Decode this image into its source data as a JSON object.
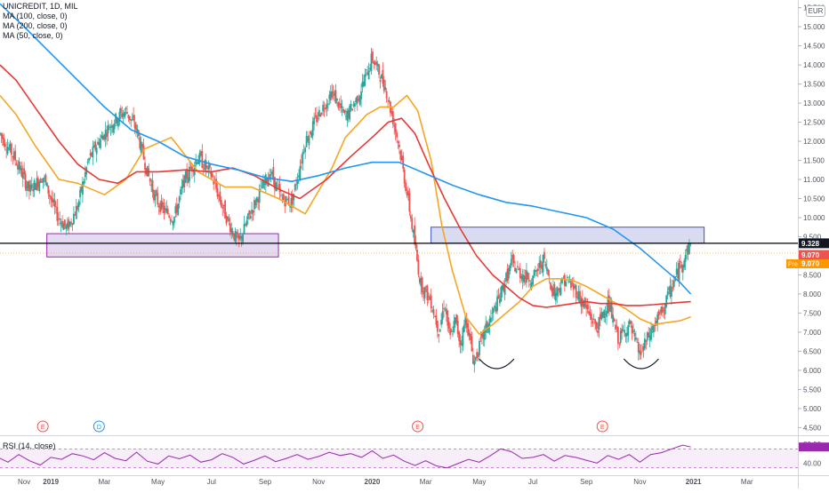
{
  "header": {
    "symbol": "UNICREDIT, 1D, MIL",
    "currency": "EUR"
  },
  "indicators": [
    {
      "label": "MA (100, close, 0)",
      "color": "#e53935"
    },
    {
      "label": "MA (200, close, 0)",
      "color": "#2196f3"
    },
    {
      "label": "MA (50, close, 0)",
      "color": "#f5a623"
    }
  ],
  "rsi_panel": {
    "label": "RSI (14, close)",
    "color": "#9c27b0",
    "ticks": [
      "80.00",
      "40.00"
    ]
  },
  "price_badges": {
    "last_close": "9.328",
    "close_tag": "9.070",
    "pre_label": "Pre",
    "pre_value": "9.070"
  },
  "event_markers": [
    "E",
    "D",
    "E",
    "E"
  ],
  "colors": {
    "candle_up": "#26a69a",
    "candle_down": "#ef5350",
    "ma50": "#f5a623",
    "ma100": "#e53935",
    "ma200": "#2196f3",
    "support_zone": "#9c27b0",
    "resistance_zone": "#3f51b5",
    "horizontal_line": "#000000",
    "badge_dark": "#131722",
    "badge_red": "#ef5350",
    "badge_orange": "#ff9800"
  },
  "chart_data": {
    "type": "line",
    "title": "UNICREDIT, 1D, MIL",
    "yaxis": {
      "ticks": [
        "15.500",
        "15.000",
        "14.500",
        "14.000",
        "13.500",
        "13.000",
        "12.500",
        "12.000",
        "11.500",
        "11.000",
        "10.500",
        "10.000",
        "9.500",
        "9.000",
        "8.500",
        "8.000",
        "7.500",
        "7.000",
        "6.500",
        "6.000",
        "5.500",
        "5.000",
        "4.500"
      ],
      "ylim": [
        4.3,
        15.7
      ]
    },
    "xaxis": {
      "ticks": [
        "Nov",
        "2019",
        "Mar",
        "May",
        "Jul",
        "Sep",
        "Nov",
        "2020",
        "Mar",
        "May",
        "Jul",
        "Sep",
        "Nov",
        "2021",
        "Mar"
      ],
      "range_months": [
        -1.9,
        27.9
      ]
    },
    "price": {
      "t": [
        -1.9,
        -1.3,
        -0.8,
        -0.3,
        0.2,
        0.6,
        1.0,
        1.4,
        1.8,
        2.3,
        2.8,
        3.2,
        3.6,
        3.9,
        4.2,
        4.6,
        5.0,
        5.5,
        6.0,
        6.5,
        7.0,
        7.5,
        7.9,
        8.2,
        8.6,
        9.0,
        9.5,
        10.0,
        10.5,
        11.0,
        11.5,
        12.0,
        12.5,
        13.0,
        13.4,
        13.8,
        14.2,
        14.5,
        14.7,
        14.9,
        15.1,
        15.3,
        15.5,
        15.8,
        16.2,
        16.7,
        17.2,
        17.6,
        18.0,
        18.4,
        18.8,
        19.2,
        19.6,
        20.0,
        20.4,
        20.8,
        21.2,
        21.6,
        22.0,
        22.4,
        22.8,
        23.2,
        23.6,
        23.9
      ],
      "close": [
        12.2,
        11.5,
        10.7,
        11.1,
        10.1,
        9.7,
        10.3,
        11.5,
        12.0,
        12.5,
        12.8,
        12.3,
        11.2,
        10.5,
        10.2,
        10.0,
        11.0,
        11.6,
        11.1,
        10.1,
        9.3,
        10.2,
        10.8,
        11.2,
        10.5,
        10.4,
        12.0,
        12.7,
        13.3,
        12.6,
        13.2,
        14.2,
        13.4,
        11.9,
        10.2,
        8.3,
        7.8,
        7.0,
        7.8,
        6.8,
        7.3,
        6.7,
        7.4,
        6.2,
        7.0,
        7.8,
        8.8,
        8.5,
        8.4,
        8.9,
        8.0,
        8.4,
        8.1,
        7.6,
        7.1,
        7.8,
        6.8,
        7.2,
        6.4,
        7.0,
        7.5,
        8.2,
        8.9,
        9.3
      ]
    },
    "series": [
      {
        "name": "MA (50, close, 0)",
        "t": [
          -1.9,
          -1.3,
          -0.6,
          0.3,
          1.0,
          2.0,
          2.8,
          3.5,
          4.5,
          5.5,
          6.5,
          7.5,
          8.5,
          9.5,
          10.5,
          11.0,
          11.8,
          12.3,
          12.8,
          13.3,
          13.7,
          14.2,
          14.6,
          15.0,
          15.5,
          16.0,
          16.5,
          17.0,
          17.5,
          18.0,
          18.5,
          19.0,
          19.5,
          20.0,
          20.5,
          21.0,
          21.5,
          22.0,
          22.5,
          23.0,
          23.5,
          23.9
        ],
        "values": [
          13.2,
          12.7,
          11.9,
          11.0,
          10.9,
          10.6,
          11.0,
          11.8,
          12.1,
          11.2,
          10.8,
          10.8,
          10.5,
          10.1,
          11.3,
          12.1,
          12.7,
          12.9,
          12.9,
          13.2,
          12.8,
          11.5,
          9.8,
          8.6,
          7.4,
          6.95,
          7.2,
          7.5,
          7.8,
          8.2,
          8.4,
          8.4,
          8.35,
          8.2,
          8.0,
          7.8,
          7.6,
          7.35,
          7.2,
          7.25,
          7.3,
          7.4
        ]
      },
      {
        "name": "MA (100, close, 0)",
        "t": [
          -1.9,
          -1.3,
          -0.6,
          0.3,
          1.0,
          1.8,
          2.5,
          3.2,
          4.0,
          5.0,
          6.0,
          6.8,
          7.6,
          8.5,
          9.3,
          10.3,
          11.2,
          12.0,
          12.6,
          13.1,
          13.6,
          14.1,
          14.7,
          15.3,
          15.9,
          16.5,
          17.0,
          17.5,
          18.0,
          18.5,
          19.0,
          19.5,
          20.0,
          20.5,
          21.0,
          21.5,
          22.0,
          22.5,
          23.0,
          23.5,
          23.9
        ],
        "values": [
          14.0,
          13.6,
          12.9,
          12.0,
          11.4,
          11.0,
          10.9,
          11.2,
          11.2,
          11.25,
          11.2,
          11.3,
          11.1,
          10.75,
          10.5,
          11.0,
          11.6,
          12.1,
          12.5,
          12.6,
          12.2,
          11.4,
          10.5,
          9.7,
          9.0,
          8.5,
          8.2,
          7.9,
          7.7,
          7.65,
          7.7,
          7.75,
          7.8,
          7.75,
          7.75,
          7.7,
          7.7,
          7.72,
          7.75,
          7.78,
          7.8
        ]
      },
      {
        "name": "MA (200, close, 0)",
        "t": [
          -1.9,
          -1.0,
          0.0,
          1.0,
          2.0,
          3.0,
          4.0,
          5.0,
          6.0,
          7.0,
          8.0,
          9.0,
          10.0,
          11.0,
          12.0,
          13.0,
          14.0,
          15.0,
          16.0,
          17.0,
          18.0,
          19.0,
          20.0,
          21.0,
          22.0,
          22.5,
          23.0,
          23.5,
          23.9
        ],
        "values": [
          15.6,
          15.0,
          14.3,
          13.6,
          12.9,
          12.3,
          12.0,
          11.6,
          11.4,
          11.25,
          11.05,
          10.95,
          11.1,
          11.3,
          11.45,
          11.45,
          11.15,
          10.85,
          10.6,
          10.4,
          10.3,
          10.15,
          10.0,
          9.7,
          9.2,
          8.9,
          8.6,
          8.3,
          8.0
        ]
      }
    ],
    "zones": [
      {
        "t0": -0.15,
        "t1": 8.5,
        "y0": 8.97,
        "y1": 9.58
      },
      {
        "t0": 14.2,
        "t1": 24.4,
        "y0": 9.33,
        "y1": 9.75
      }
    ],
    "hline": 9.328,
    "arcs": [
      {
        "t0": 16.0,
        "t1": 17.3,
        "ylevel": 6.3
      },
      {
        "t0": 21.4,
        "t1": 22.7,
        "ylevel": 6.3
      }
    ],
    "rsi": {
      "ylim": [
        20,
        95
      ],
      "levels": [
        70,
        30
      ],
      "t": [
        -1.9,
        -1.6,
        -1.2,
        -0.8,
        -0.4,
        0.0,
        0.4,
        0.8,
        1.2,
        1.6,
        2.0,
        2.4,
        2.8,
        3.2,
        3.6,
        4.0,
        4.4,
        4.8,
        5.2,
        5.6,
        6.0,
        6.4,
        6.8,
        7.2,
        7.6,
        8.0,
        8.4,
        8.8,
        9.2,
        9.6,
        10.0,
        10.4,
        10.8,
        11.2,
        11.6,
        12.0,
        12.4,
        12.8,
        13.2,
        13.6,
        14.0,
        14.4,
        14.8,
        15.2,
        15.6,
        16.0,
        16.4,
        16.8,
        17.2,
        17.6,
        18.0,
        18.4,
        18.8,
        19.2,
        19.6,
        20.0,
        20.4,
        20.8,
        21.2,
        21.6,
        22.0,
        22.4,
        22.8,
        23.2,
        23.6,
        23.9
      ],
      "values": [
        50,
        42,
        58,
        45,
        36,
        52,
        48,
        60,
        55,
        47,
        62,
        50,
        45,
        63,
        44,
        38,
        55,
        49,
        57,
        42,
        47,
        60,
        52,
        38,
        46,
        55,
        43,
        50,
        58,
        48,
        54,
        63,
        56,
        60,
        52,
        66,
        50,
        57,
        44,
        35,
        45,
        34,
        30,
        39,
        48,
        42,
        55,
        70,
        64,
        50,
        52,
        58,
        44,
        56,
        52,
        46,
        40,
        56,
        48,
        58,
        42,
        58,
        62,
        70,
        78,
        74
      ]
    },
    "event_times": [
      -0.3,
      1.8,
      13.7,
      20.6
    ]
  }
}
